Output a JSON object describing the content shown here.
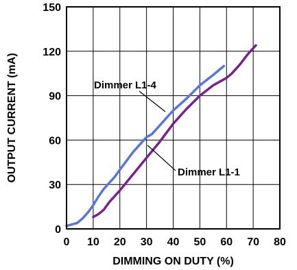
{
  "chart_data": {
    "type": "line",
    "xlabel": "DIMMING ON DUTY (%)",
    "ylabel": "OUTPUT CURRENT (mA)",
    "xlim": [
      0,
      80
    ],
    "ylim": [
      0,
      150
    ],
    "xticks": [
      0,
      10,
      20,
      30,
      40,
      50,
      60,
      70,
      80
    ],
    "yticks": [
      0,
      30,
      60,
      90,
      120,
      150
    ],
    "grid": true,
    "legend": "none",
    "series": [
      {
        "name": "Dimmer L1-4",
        "color": "#5577dd",
        "x": [
          0,
          2,
          4,
          6,
          8,
          10,
          12,
          14,
          16,
          18,
          20,
          25,
          30,
          32,
          35,
          40,
          45,
          50,
          55,
          59
        ],
        "y": [
          2,
          3,
          4,
          7,
          11,
          16,
          22,
          27,
          31,
          35,
          40,
          52,
          62,
          64,
          70,
          80,
          88,
          97,
          104,
          110
        ]
      },
      {
        "name": "Dimmer L1-1",
        "color": "#7a1f8f",
        "x": [
          10,
          12,
          14,
          16,
          18,
          20,
          25,
          30,
          35,
          40,
          45,
          50,
          55,
          60,
          62,
          65,
          68,
          71
        ],
        "y": [
          8,
          10,
          13,
          18,
          22,
          26,
          37,
          48,
          59,
          71,
          81,
          90,
          97,
          102,
          105,
          111,
          118,
          124
        ]
      }
    ],
    "annotations": [
      {
        "text": "Dimmer L1-4",
        "series": 0
      },
      {
        "text": "Dimmer L1-1",
        "series": 1
      }
    ]
  }
}
